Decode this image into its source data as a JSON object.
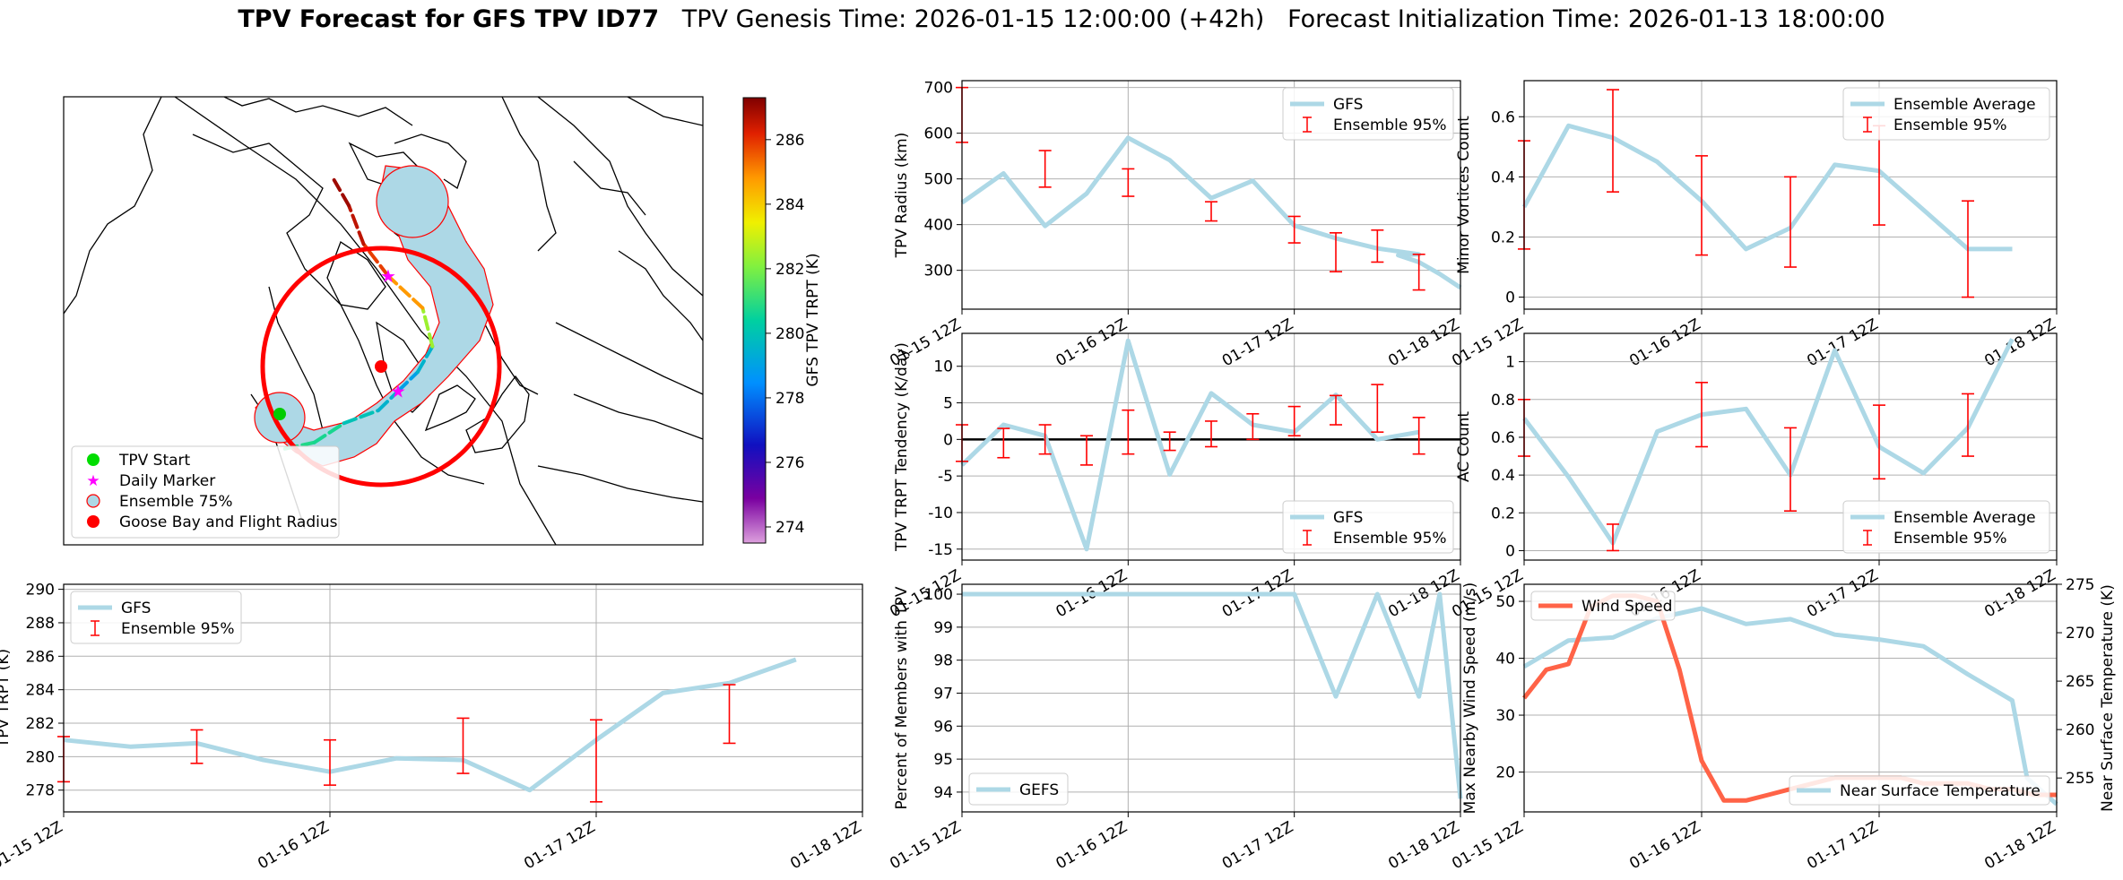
{
  "figure": {
    "title_bold": "TPV Forecast for GFS TPV ID77",
    "genesis": "TPV Genesis Time: 2026-01-15 12:00:00 (+42h)",
    "init": "Forecast Initialization Time: 2026-01-13 18:00:00"
  },
  "colors": {
    "gfs": "#add8e6",
    "ensemble": "#ff0000",
    "wind": "#ff6347",
    "temp_axis": "#4169e1"
  },
  "map": {
    "legend": [
      {
        "label": "TPV Start",
        "symbol": "green-circle"
      },
      {
        "label": "Daily Marker",
        "symbol": "magenta-star"
      },
      {
        "label": "Ensemble 75%",
        "symbol": "lightblue-circle"
      },
      {
        "label": "Goose Bay and Flight Radius",
        "symbol": "red-circle"
      }
    ],
    "colorbar": {
      "label": "GFS TPV TRPT (K)",
      "ticks": [
        "274",
        "276",
        "278",
        "280",
        "282",
        "284",
        "286"
      ],
      "range": [
        273.5,
        287.3
      ]
    },
    "track": [
      {
        "lon": -67.5,
        "lat": 47.5,
        "trpt": 281.0
      },
      {
        "lon": -64.5,
        "lat": 48.0,
        "trpt": 280.6
      },
      {
        "lon": -61.5,
        "lat": 49.5,
        "trpt": 280.8
      },
      {
        "lon": -58.0,
        "lat": 50.5,
        "trpt": 279.1
      },
      {
        "lon": -56.0,
        "lat": 52.0,
        "trpt": 279.9
      },
      {
        "lon": -54.0,
        "lat": 53.5,
        "trpt": 278.0
      },
      {
        "lon": -52.5,
        "lat": 55.5,
        "trpt": 281.0
      },
      {
        "lon": -53.5,
        "lat": 58.5,
        "trpt": 283.8
      },
      {
        "lon": -57.0,
        "lat": 61.0,
        "trpt": 285.8
      },
      {
        "lon": -59.5,
        "lat": 63.5,
        "trpt": 285.9
      },
      {
        "lon": -61.0,
        "lat": 66.5,
        "trpt": 287.3
      },
      {
        "lon": -62.5,
        "lat": 68.5,
        "trpt": 286.6
      }
    ]
  },
  "x_ticks": [
    "01-15 12Z",
    "01-16 12Z",
    "01-17 12Z",
    "01-18 12Z"
  ],
  "chart_data": [
    {
      "id": "radius",
      "type": "line",
      "ylabel": "TPV Radius (km)",
      "ylim": [
        215,
        715
      ],
      "yticks": [
        300,
        400,
        500,
        600,
        700
      ],
      "xlim": [
        0,
        66
      ],
      "x_tick_values": [
        0,
        24,
        48,
        72
      ],
      "legend_position": "upper-right",
      "series": [
        {
          "name": "GFS",
          "x": [
            0,
            6,
            12,
            18,
            24,
            30,
            36,
            42,
            48,
            54,
            60,
            66
          ],
          "values": [
            448,
            512,
            397,
            468,
            590,
            541,
            458,
            496,
            398,
            370,
            348,
            335
          ]
        },
        {
          "name": "Ensemble 95%",
          "kind": "errorbar",
          "x": [
            0,
            12,
            24,
            36,
            48,
            54,
            60,
            66
          ],
          "low": [
            580,
            482,
            462,
            408,
            360,
            297,
            318,
            257
          ],
          "high": [
            700,
            562,
            522,
            450,
            418,
            382,
            388,
            335
          ]
        }
      ],
      "tail": {
        "x": [
          60,
          63,
          66,
          69,
          72
        ],
        "values": [
          345,
          333,
          318,
          292,
          262
        ]
      }
    },
    {
      "id": "minor",
      "type": "line",
      "ylabel": "Minor Vortices Count",
      "ylim": [
        -0.04,
        0.72
      ],
      "yticks": [
        0.0,
        0.2,
        0.4,
        0.6
      ],
      "legend_position": "upper-right",
      "series": [
        {
          "name": "Ensemble Average",
          "x": [
            0,
            6,
            12,
            18,
            24,
            30,
            36,
            42,
            48,
            54,
            60,
            66
          ],
          "values": [
            0.3,
            0.57,
            0.53,
            0.45,
            0.32,
            0.16,
            0.23,
            0.44,
            0.42,
            0.29,
            0.16,
            0.16
          ]
        },
        {
          "name": "Ensemble 95%",
          "kind": "errorbar",
          "x": [
            0,
            12,
            24,
            36,
            48,
            60
          ],
          "low": [
            0.16,
            0.35,
            0.14,
            0.1,
            0.24,
            0.0
          ],
          "high": [
            0.52,
            0.69,
            0.47,
            0.4,
            0.57,
            0.32
          ]
        }
      ]
    },
    {
      "id": "tendency",
      "type": "line",
      "ylabel": "TPV TRPT Tendency (K/day)",
      "ylim": [
        -16.5,
        14.5
      ],
      "yticks": [
        -15,
        -10,
        -5,
        0,
        5,
        10
      ],
      "legend_position": "lower-right",
      "series": [
        {
          "name": "GFS",
          "x": [
            0,
            6,
            12,
            18,
            24,
            30,
            36,
            42,
            48,
            54,
            60,
            66
          ],
          "values": [
            -3.5,
            2.0,
            0.5,
            -15.0,
            13.5,
            -4.8,
            6.3,
            2.0,
            1.0,
            6.1,
            0.0,
            1.0
          ]
        },
        {
          "name": "Ensemble 95%",
          "kind": "errorbar",
          "x": [
            0,
            6,
            12,
            18,
            24,
            30,
            36,
            42,
            48,
            54,
            60,
            66
          ],
          "low": [
            -3.0,
            -2.5,
            -2.0,
            -3.5,
            -2.0,
            -1.5,
            -1.0,
            0.0,
            0.5,
            2.0,
            1.0,
            -2.0
          ],
          "high": [
            2.0,
            1.5,
            2.0,
            0.5,
            4.0,
            1.0,
            2.5,
            3.5,
            4.5,
            6.0,
            7.5,
            3.0
          ]
        }
      ]
    },
    {
      "id": "ac",
      "type": "line",
      "ylabel": "AC Count",
      "ylim": [
        -0.05,
        1.15
      ],
      "yticks": [
        0.0,
        0.2,
        0.4,
        0.6,
        0.8,
        1.0
      ],
      "legend_position": "lower-right",
      "series": [
        {
          "name": "Ensemble Average",
          "x": [
            0,
            6,
            12,
            18,
            24,
            30,
            36,
            42,
            48,
            54,
            60,
            66
          ],
          "values": [
            0.7,
            0.39,
            0.04,
            0.63,
            0.72,
            0.75,
            0.4,
            1.06,
            0.55,
            0.41,
            0.65,
            1.12
          ]
        },
        {
          "name": "Ensemble 95%",
          "kind": "errorbar",
          "x": [
            0,
            12,
            24,
            36,
            48,
            60
          ],
          "low": [
            0.5,
            0.0,
            0.55,
            0.21,
            0.38,
            0.5
          ],
          "high": [
            0.8,
            0.14,
            0.89,
            0.65,
            0.77,
            0.83
          ]
        }
      ]
    },
    {
      "id": "trpt",
      "type": "line",
      "ylabel": "TPV TRPT (K)",
      "ylim": [
        276.7,
        290.3
      ],
      "yticks": [
        278,
        280,
        282,
        284,
        286,
        288,
        290
      ],
      "legend_position": "upper-left",
      "series": [
        {
          "name": "GFS",
          "x": [
            0,
            6,
            12,
            18,
            24,
            30,
            36,
            42,
            48,
            54,
            60,
            66
          ],
          "values": [
            281.0,
            280.6,
            280.8,
            279.8,
            279.1,
            279.9,
            279.8,
            278.0,
            281.0,
            283.8,
            284.4,
            285.8
          ]
        },
        {
          "name": "Ensemble 95%",
          "kind": "errorbar",
          "x": [
            0,
            12,
            24,
            36,
            48,
            60
          ],
          "low": [
            278.5,
            279.6,
            278.3,
            279.0,
            277.3,
            280.8
          ],
          "high": [
            281.2,
            281.6,
            281.0,
            282.3,
            282.2,
            284.3
          ]
        }
      ]
    },
    {
      "id": "percent",
      "type": "line",
      "ylabel": "Percent of Members with TPV",
      "ylim": [
        93.4,
        100.3
      ],
      "yticks": [
        94,
        95,
        96,
        97,
        98,
        99,
        100
      ],
      "legend_position": "lower-left",
      "series": [
        {
          "name": "GEFS",
          "x": [
            0,
            6,
            12,
            18,
            24,
            30,
            36,
            42,
            48,
            54,
            60,
            66
          ],
          "values": [
            100,
            100,
            100,
            100,
            100,
            100,
            100,
            100,
            100,
            96.9,
            100,
            96.9
          ]
        }
      ]
    },
    {
      "id": "wind_temp",
      "type": "line",
      "ylabel": "Max Nearby Wind Speed (m/s)",
      "ylim": [
        13,
        53
      ],
      "yticks": [
        20,
        30,
        40,
        50
      ],
      "y2label": "Near Surface Temperature (K)",
      "y2lim": [
        251.5,
        275
      ],
      "y2ticks": [
        255,
        260,
        265,
        270,
        275
      ],
      "series": [
        {
          "name": "Wind Speed",
          "axis": "left",
          "x": [
            0,
            3,
            6,
            9,
            12,
            15,
            18,
            21,
            24,
            27,
            30,
            33,
            36,
            39,
            42,
            45,
            48,
            51,
            54,
            57,
            60,
            63,
            66,
            69,
            72
          ],
          "values": [
            33,
            38,
            39,
            49,
            51,
            51,
            50,
            38,
            22,
            15,
            15,
            16,
            17,
            18,
            19,
            19,
            19,
            19,
            18,
            18,
            18,
            17,
            17,
            16,
            16
          ]
        },
        {
          "name": "Near Surface Temperature",
          "axis": "right",
          "x": [
            0,
            6,
            12,
            18,
            24,
            30,
            36,
            42,
            48,
            54,
            60,
            66
          ],
          "values": [
            266.5,
            269.2,
            269.5,
            271.5,
            272.5,
            270.9,
            271.4,
            269.8,
            269.3,
            268.6,
            265.7,
            263.0
          ]
        }
      ]
    }
  ],
  "percent_tail": {
    "x": [
      66,
      69,
      72
    ],
    "values": [
      96.9,
      100,
      93.8
    ]
  }
}
